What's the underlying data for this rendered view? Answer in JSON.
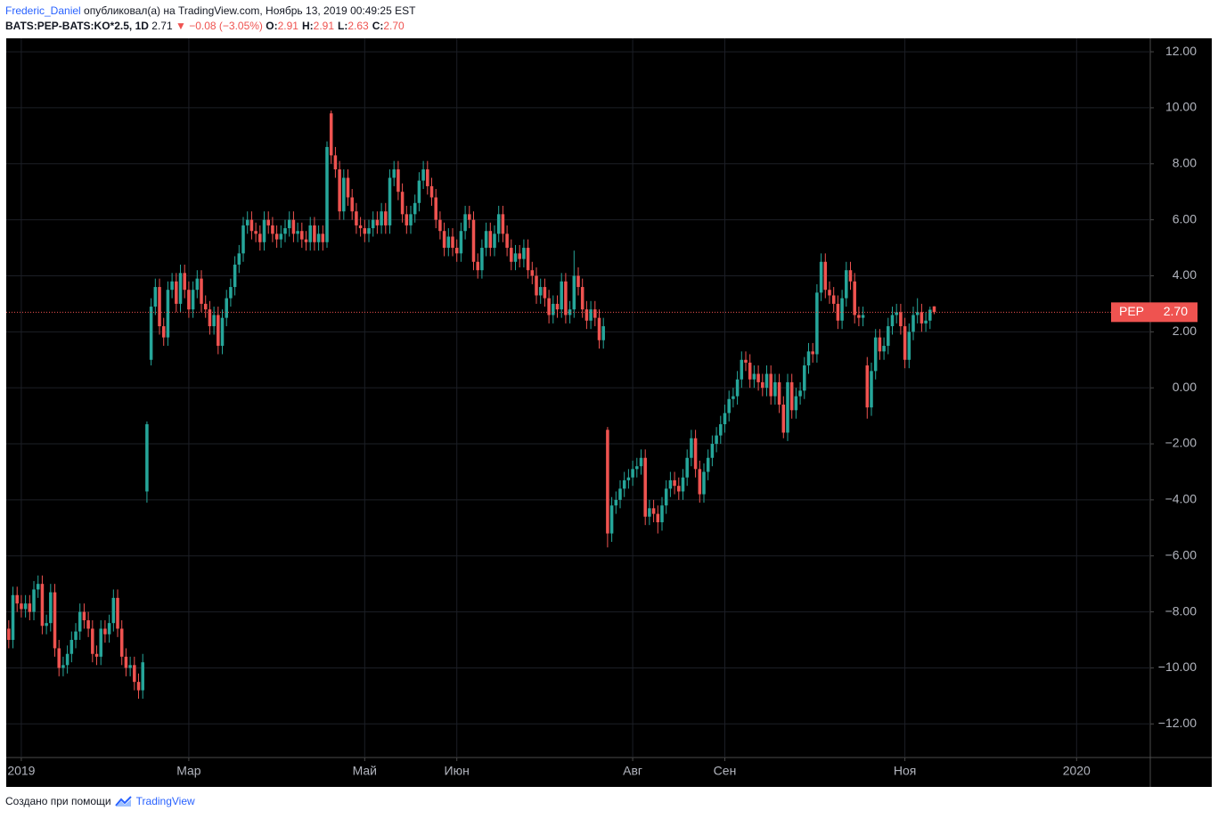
{
  "header": {
    "author": "Frederic_Daniel",
    "published": "опубликовал(а) на TradingView.com, Ноябрь 13, 2019 00:49:25 EST",
    "symbol": "BATS:PEP-BATS:KO*2.5, 1D",
    "last": "2.71",
    "arrow": "▼",
    "change": "−0.08 (−3.05%)",
    "ohlc": [
      {
        "label": "O:",
        "value": "2.91"
      },
      {
        "label": "H:",
        "value": "2.91"
      },
      {
        "label": "L:",
        "value": "2.63"
      },
      {
        "label": "C:",
        "value": "2.70"
      }
    ]
  },
  "footer": {
    "text": "Создано при помощи",
    "brand": "TradingView"
  },
  "chart_data": {
    "type": "candlestick",
    "up_color": "#26a69a",
    "down_color": "#ef5350",
    "grid": true,
    "xlim": [
      -0.6,
      272.6
    ],
    "ylim": [
      -13.2,
      12.48
    ],
    "xticks": [
      {
        "value": 3,
        "label": "2019"
      },
      {
        "value": 43,
        "label": "Мар"
      },
      {
        "value": 85,
        "label": "Май"
      },
      {
        "value": 107,
        "label": "Июн"
      },
      {
        "value": 149,
        "label": "Авг"
      },
      {
        "value": 171,
        "label": "Сен"
      },
      {
        "value": 214,
        "label": "Ноя"
      },
      {
        "value": 255,
        "label": "2020"
      }
    ],
    "yticks": [
      {
        "value": 12,
        "label": "12.00"
      },
      {
        "value": 10,
        "label": "10.00"
      },
      {
        "value": 8,
        "label": "8.00"
      },
      {
        "value": 6,
        "label": "6.00"
      },
      {
        "value": 4,
        "label": "4.00"
      },
      {
        "value": 2,
        "label": "2.00"
      },
      {
        "value": 0,
        "label": "0.00"
      },
      {
        "value": -2,
        "label": "−2.00"
      },
      {
        "value": -4,
        "label": "−4.00"
      },
      {
        "value": -6,
        "label": "−6.00"
      },
      {
        "value": -8,
        "label": "−8.00"
      },
      {
        "value": -10,
        "label": "−10.00"
      },
      {
        "value": -12,
        "label": "−12.00"
      }
    ],
    "price_line": {
      "name": "PEP",
      "value": 2.7,
      "label": "2.70",
      "color": "#ef5350"
    },
    "open": [
      -8.6,
      -9.0,
      -7.4,
      -7.7,
      -7.9,
      -7.7,
      -8.0,
      -7.2,
      -7.0,
      -8.5,
      -8.4,
      -7.3,
      -9.3,
      -10.0,
      -9.9,
      -9.5,
      -9.0,
      -8.7,
      -8.0,
      -8.3,
      -8.6,
      -9.5,
      -9.6,
      -8.6,
      -8.8,
      -8.4,
      -7.5,
      -8.6,
      -9.6,
      -10.0,
      -9.9,
      -10.5,
      -10.8,
      -3.7,
      1.0,
      2.9,
      3.6,
      2.2,
      1.8,
      3.5,
      3.8,
      3.0,
      4.1,
      3.5,
      2.8,
      3.5,
      3.9,
      3.0,
      2.8,
      2.2,
      2.6,
      1.5,
      2.5,
      3.2,
      3.6,
      4.4,
      4.8,
      5.8,
      6.0,
      5.6,
      5.5,
      5.2,
      6.0,
      5.8,
      5.5,
      5.3,
      5.5,
      5.7,
      6.0,
      5.5,
      5.6,
      5.3,
      5.2,
      5.8,
      5.2,
      5.5,
      5.2,
      9.8,
      8.3,
      7.8,
      6.3,
      7.5,
      6.8,
      6.3,
      5.8,
      5.7,
      5.5,
      5.7,
      6.0,
      5.8,
      6.3,
      5.8,
      7.5,
      7.8,
      7.0,
      6.2,
      5.8,
      6.2,
      6.6,
      7.4,
      7.8,
      7.2,
      6.8,
      6.0,
      5.6,
      5.0,
      5.4,
      5.0,
      4.8,
      5.6,
      6.2,
      6.0,
      4.5,
      4.2,
      5.0,
      5.6,
      5.0,
      5.5,
      6.2,
      5.5,
      5.0,
      4.5,
      4.8,
      4.6,
      5.0,
      4.2,
      4.0,
      3.3,
      3.6,
      3.2,
      2.6,
      3.0,
      2.8,
      3.8,
      2.6,
      2.8,
      4.0,
      3.6,
      2.8,
      2.4,
      2.8,
      2.5,
      1.7,
      -1.5,
      -5.2,
      -4.2,
      -4.0,
      -3.6,
      -3.3,
      -3.2,
      -2.9,
      -2.8,
      -2.5,
      -4.6,
      -4.3,
      -4.5,
      -4.8,
      -4.2,
      -3.6,
      -3.3,
      -3.5,
      -3.7,
      -3.2,
      -2.5,
      -1.8,
      -2.9,
      -3.8,
      -3.0,
      -2.5,
      -2.0,
      -1.7,
      -1.3,
      -0.9,
      -0.4,
      -0.3,
      0.3,
      1.0,
      0.9,
      0.3,
      0.5,
      0.2,
      0.0,
      0.5,
      -0.3,
      0.2,
      -0.6,
      -1.6,
      0.2,
      -0.8,
      -0.3,
      -0.1,
      0.8,
      1.3,
      1.2,
      3.4,
      4.5,
      3.5,
      3.3,
      3.0,
      2.4,
      3.2,
      4.2,
      3.8,
      2.6,
      2.5,
      0.8,
      -0.7,
      0.6,
      1.8,
      1.3,
      1.5,
      2.2,
      2.6,
      2.7,
      2.2,
      1.0,
      2.0,
      2.6,
      2.7,
      2.3,
      2.4,
      2.91
    ],
    "high": [
      -8.3,
      -7.1,
      -7.1,
      -7.4,
      -7.4,
      -7.4,
      -6.9,
      -6.7,
      -6.7,
      -8.1,
      -7.0,
      -7.0,
      -9.0,
      -9.6,
      -9.2,
      -8.7,
      -8.4,
      -7.7,
      -7.7,
      -8.0,
      -8.3,
      -9.2,
      -8.3,
      -8.3,
      -8.1,
      -7.2,
      -7.2,
      -8.3,
      -9.3,
      -9.6,
      -9.6,
      -10.2,
      -9.5,
      -1.2,
      3.2,
      3.9,
      3.9,
      2.5,
      3.8,
      4.1,
      4.1,
      4.4,
      4.4,
      3.8,
      3.8,
      4.2,
      4.2,
      3.3,
      3.1,
      2.9,
      2.9,
      2.8,
      3.5,
      3.9,
      4.7,
      5.1,
      6.1,
      6.3,
      6.3,
      5.9,
      5.8,
      6.3,
      6.3,
      6.1,
      5.8,
      5.8,
      6.0,
      6.3,
      6.3,
      5.9,
      5.9,
      5.6,
      6.1,
      6.1,
      5.8,
      5.8,
      8.8,
      9.9,
      8.6,
      8.1,
      7.8,
      7.8,
      7.1,
      6.6,
      6.1,
      6.0,
      6.0,
      6.3,
      6.3,
      6.6,
      6.6,
      7.8,
      8.1,
      8.1,
      7.3,
      6.5,
      6.5,
      6.9,
      7.7,
      8.1,
      8.1,
      7.5,
      7.1,
      6.3,
      5.9,
      5.7,
      5.7,
      5.3,
      5.9,
      6.5,
      6.5,
      6.3,
      4.8,
      5.3,
      5.9,
      5.9,
      5.8,
      6.5,
      6.5,
      5.8,
      5.3,
      5.1,
      5.1,
      5.3,
      5.3,
      4.5,
      4.3,
      3.9,
      3.9,
      3.5,
      3.3,
      3.3,
      4.1,
      4.1,
      3.1,
      4.9,
      4.3,
      3.9,
      3.1,
      3.1,
      3.1,
      2.8,
      2.5,
      -1.4,
      -3.9,
      -3.7,
      -3.3,
      -3.0,
      -2.9,
      -2.6,
      -2.5,
      -2.2,
      -2.2,
      -4.0,
      -4.0,
      -4.2,
      -3.9,
      -3.3,
      -3.0,
      -3.0,
      -3.2,
      -2.9,
      -2.2,
      -1.5,
      -1.5,
      -2.6,
      -2.7,
      -2.2,
      -1.7,
      -1.4,
      -1.0,
      -0.6,
      -0.1,
      0.0,
      0.6,
      1.3,
      1.3,
      1.2,
      0.8,
      0.8,
      0.5,
      0.8,
      0.8,
      0.5,
      0.5,
      -0.3,
      0.5,
      0.5,
      0.0,
      0.2,
      1.1,
      1.6,
      1.6,
      3.7,
      4.8,
      4.8,
      3.8,
      3.6,
      3.3,
      3.5,
      4.5,
      4.5,
      4.1,
      2.9,
      2.9,
      1.1,
      0.9,
      2.1,
      2.1,
      1.8,
      2.5,
      2.9,
      3.0,
      3.0,
      2.5,
      2.3,
      2.9,
      3.2,
      3.0,
      2.7,
      2.9,
      2.91
    ],
    "low": [
      -9.3,
      -9.3,
      -8.0,
      -8.2,
      -8.2,
      -8.3,
      -8.3,
      -7.5,
      -8.8,
      -8.8,
      -8.7,
      -9.6,
      -10.3,
      -10.3,
      -10.2,
      -9.8,
      -9.3,
      -9.0,
      -8.6,
      -8.9,
      -9.8,
      -9.9,
      -9.9,
      -9.1,
      -9.1,
      -8.7,
      -8.9,
      -9.9,
      -10.3,
      -10.3,
      -10.8,
      -11.1,
      -11.1,
      -4.1,
      0.8,
      2.6,
      1.9,
      1.5,
      1.5,
      3.2,
      2.7,
      2.7,
      3.2,
      2.5,
      2.5,
      3.2,
      2.7,
      2.5,
      1.9,
      1.9,
      1.2,
      1.2,
      2.2,
      2.9,
      3.3,
      4.1,
      4.5,
      5.5,
      5.3,
      5.2,
      4.9,
      4.9,
      5.5,
      5.2,
      5.0,
      5.0,
      5.2,
      5.4,
      5.2,
      5.2,
      5.0,
      4.9,
      4.9,
      4.9,
      4.9,
      4.9,
      5.0,
      8.0,
      7.5,
      6.0,
      6.0,
      6.5,
      6.0,
      5.5,
      5.4,
      5.2,
      5.2,
      5.4,
      5.5,
      5.5,
      5.5,
      5.5,
      7.2,
      6.7,
      5.9,
      5.5,
      5.5,
      5.9,
      6.3,
      7.1,
      6.9,
      6.5,
      5.7,
      5.3,
      4.7,
      4.7,
      4.7,
      4.5,
      4.5,
      5.3,
      5.7,
      4.2,
      3.9,
      3.9,
      4.7,
      4.7,
      4.7,
      5.2,
      5.2,
      4.7,
      4.2,
      4.2,
      4.3,
      4.3,
      3.9,
      3.7,
      3.0,
      3.0,
      2.9,
      2.3,
      2.3,
      2.5,
      2.5,
      2.3,
      2.3,
      2.5,
      3.3,
      2.5,
      2.1,
      2.1,
      2.2,
      1.4,
      1.4,
      -5.7,
      -5.5,
      -4.5,
      -4.3,
      -3.9,
      -3.6,
      -3.5,
      -3.2,
      -3.1,
      -4.9,
      -4.9,
      -4.8,
      -5.2,
      -5.1,
      -4.5,
      -3.9,
      -3.8,
      -4.0,
      -4.0,
      -3.5,
      -2.8,
      -3.2,
      -4.1,
      -4.1,
      -3.3,
      -2.8,
      -2.3,
      -2.0,
      -1.6,
      -1.2,
      -0.7,
      -0.6,
      0.0,
      0.6,
      0.0,
      0.0,
      -0.1,
      -0.3,
      -0.3,
      -0.6,
      -0.6,
      -0.9,
      -1.8,
      -1.9,
      -1.1,
      -1.1,
      -0.6,
      -0.4,
      0.5,
      0.9,
      0.9,
      3.1,
      3.2,
      3.0,
      2.7,
      2.1,
      2.1,
      2.9,
      3.5,
      2.3,
      2.2,
      2.2,
      -1.1,
      -1.0,
      0.3,
      1.0,
      1.0,
      1.2,
      1.9,
      2.3,
      1.9,
      0.7,
      0.7,
      1.7,
      2.3,
      2.0,
      2.0,
      2.1,
      2.63
    ],
    "close": [
      -9.0,
      -7.4,
      -7.7,
      -7.9,
      -7.7,
      -8.0,
      -7.2,
      -7.0,
      -8.5,
      -8.4,
      -7.3,
      -9.3,
      -10.0,
      -9.9,
      -9.5,
      -9.0,
      -8.7,
      -8.0,
      -8.3,
      -8.6,
      -9.5,
      -9.6,
      -8.6,
      -8.8,
      -8.4,
      -7.5,
      -8.6,
      -9.6,
      -10.0,
      -9.9,
      -10.5,
      -10.8,
      -9.8,
      -1.3,
      2.9,
      3.6,
      2.2,
      1.8,
      3.5,
      3.8,
      3.0,
      4.1,
      3.5,
      2.8,
      3.5,
      3.9,
      3.0,
      2.8,
      2.2,
      2.6,
      1.5,
      2.5,
      3.2,
      3.6,
      4.4,
      4.8,
      5.8,
      6.0,
      5.6,
      5.5,
      5.2,
      6.0,
      5.8,
      5.5,
      5.3,
      5.5,
      5.7,
      6.0,
      5.5,
      5.6,
      5.3,
      5.2,
      5.8,
      5.2,
      5.5,
      5.2,
      8.6,
      8.3,
      7.8,
      6.3,
      7.5,
      6.8,
      6.3,
      5.8,
      5.7,
      5.5,
      5.7,
      6.0,
      5.8,
      6.3,
      5.8,
      7.5,
      7.8,
      7.0,
      6.2,
      5.8,
      6.2,
      6.6,
      7.4,
      7.8,
      7.2,
      6.8,
      6.0,
      5.6,
      5.0,
      5.4,
      5.0,
      4.8,
      5.6,
      6.2,
      6.0,
      4.5,
      4.2,
      5.0,
      5.6,
      5.0,
      5.5,
      6.2,
      5.5,
      5.0,
      4.5,
      4.8,
      4.6,
      5.0,
      4.2,
      4.0,
      3.3,
      3.6,
      3.2,
      2.6,
      3.0,
      2.8,
      3.8,
      2.6,
      2.8,
      4.0,
      3.6,
      2.8,
      2.4,
      2.8,
      2.5,
      1.7,
      2.2,
      -5.2,
      -4.2,
      -4.0,
      -3.6,
      -3.3,
      -3.2,
      -2.9,
      -2.8,
      -2.5,
      -4.6,
      -4.3,
      -4.5,
      -4.8,
      -4.2,
      -3.6,
      -3.3,
      -3.5,
      -3.7,
      -3.2,
      -2.5,
      -1.8,
      -2.9,
      -3.8,
      -3.0,
      -2.5,
      -2.0,
      -1.7,
      -1.3,
      -0.9,
      -0.4,
      -0.3,
      0.3,
      1.0,
      0.9,
      0.3,
      0.5,
      0.2,
      0.0,
      0.5,
      -0.3,
      0.2,
      -0.6,
      -1.6,
      0.2,
      -0.8,
      -0.3,
      -0.1,
      0.8,
      1.3,
      1.2,
      3.4,
      4.5,
      3.5,
      3.3,
      3.0,
      2.4,
      3.2,
      4.2,
      3.8,
      2.6,
      2.5,
      2.6,
      -0.7,
      0.6,
      1.8,
      1.3,
      1.5,
      2.2,
      2.6,
      2.7,
      2.2,
      1.0,
      2.0,
      2.6,
      2.7,
      2.3,
      2.4,
      2.79,
      2.7
    ]
  }
}
